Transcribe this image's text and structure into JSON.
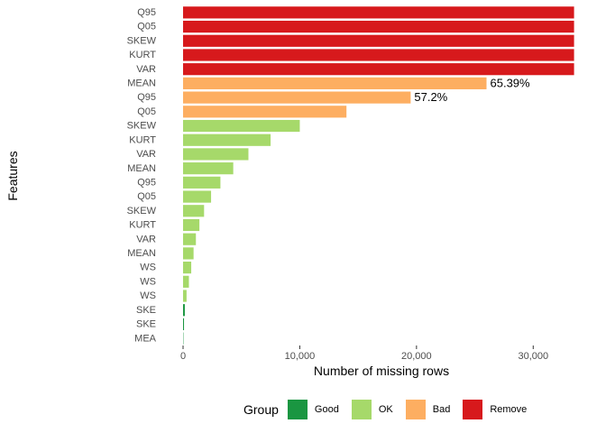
{
  "chart_data": {
    "type": "bar",
    "orientation": "horizontal",
    "title": "",
    "xlabel": "Number of missing rows",
    "ylabel": "Features",
    "xlim": [
      0,
      35000
    ],
    "x_ticks": [
      0,
      10000,
      20000,
      30000
    ],
    "x_tick_labels": [
      "0",
      "10,000",
      "20,000",
      "30,000"
    ],
    "legend": {
      "title": "Group",
      "position": "bottom",
      "entries": [
        {
          "name": "Good",
          "color": "#1a9641"
        },
        {
          "name": "OK",
          "color": "#a6d96a"
        },
        {
          "name": "Bad",
          "color": "#fdae61"
        },
        {
          "name": "Remove",
          "color": "#d7191c"
        }
      ]
    },
    "visible_labels": [
      "57.2%",
      "65.39%"
    ],
    "y_tick_labels": [
      "Q95",
      "Q05",
      "SKEW",
      "KURT",
      "VAR",
      "MEAN",
      "Q95",
      "Q05",
      "SKEW",
      "KURT",
      "VAR",
      "MEAN",
      "Q95",
      "Q05",
      "SKEW",
      "KURT",
      "VAR",
      "MEAN",
      "WS",
      "WS",
      "WS",
      "SKE",
      "SKE",
      "MEA"
    ],
    "bars": [
      {
        "value": 30,
        "group": "Good"
      },
      {
        "value": 80,
        "group": "Good"
      },
      {
        "value": 150,
        "group": "Good"
      },
      {
        "value": 300,
        "group": "OK"
      },
      {
        "value": 500,
        "group": "OK"
      },
      {
        "value": 700,
        "group": "OK"
      },
      {
        "value": 900,
        "group": "OK"
      },
      {
        "value": 1100,
        "group": "OK"
      },
      {
        "value": 1400,
        "group": "OK"
      },
      {
        "value": 1800,
        "group": "OK"
      },
      {
        "value": 2400,
        "group": "OK"
      },
      {
        "value": 3200,
        "group": "OK"
      },
      {
        "value": 4300,
        "group": "OK"
      },
      {
        "value": 5600,
        "group": "OK"
      },
      {
        "value": 7500,
        "group": "OK"
      },
      {
        "value": 10000,
        "group": "OK"
      },
      {
        "value": 14000,
        "group": "Bad"
      },
      {
        "value": 19500,
        "group": "Bad"
      },
      {
        "value": 26000,
        "group": "Bad"
      },
      {
        "value": 33500,
        "group": "Remove"
      },
      {
        "value": 33500,
        "group": "Remove"
      },
      {
        "value": 33500,
        "group": "Remove"
      },
      {
        "value": 33500,
        "group": "Remove"
      },
      {
        "value": 33500,
        "group": "Remove"
      }
    ]
  }
}
